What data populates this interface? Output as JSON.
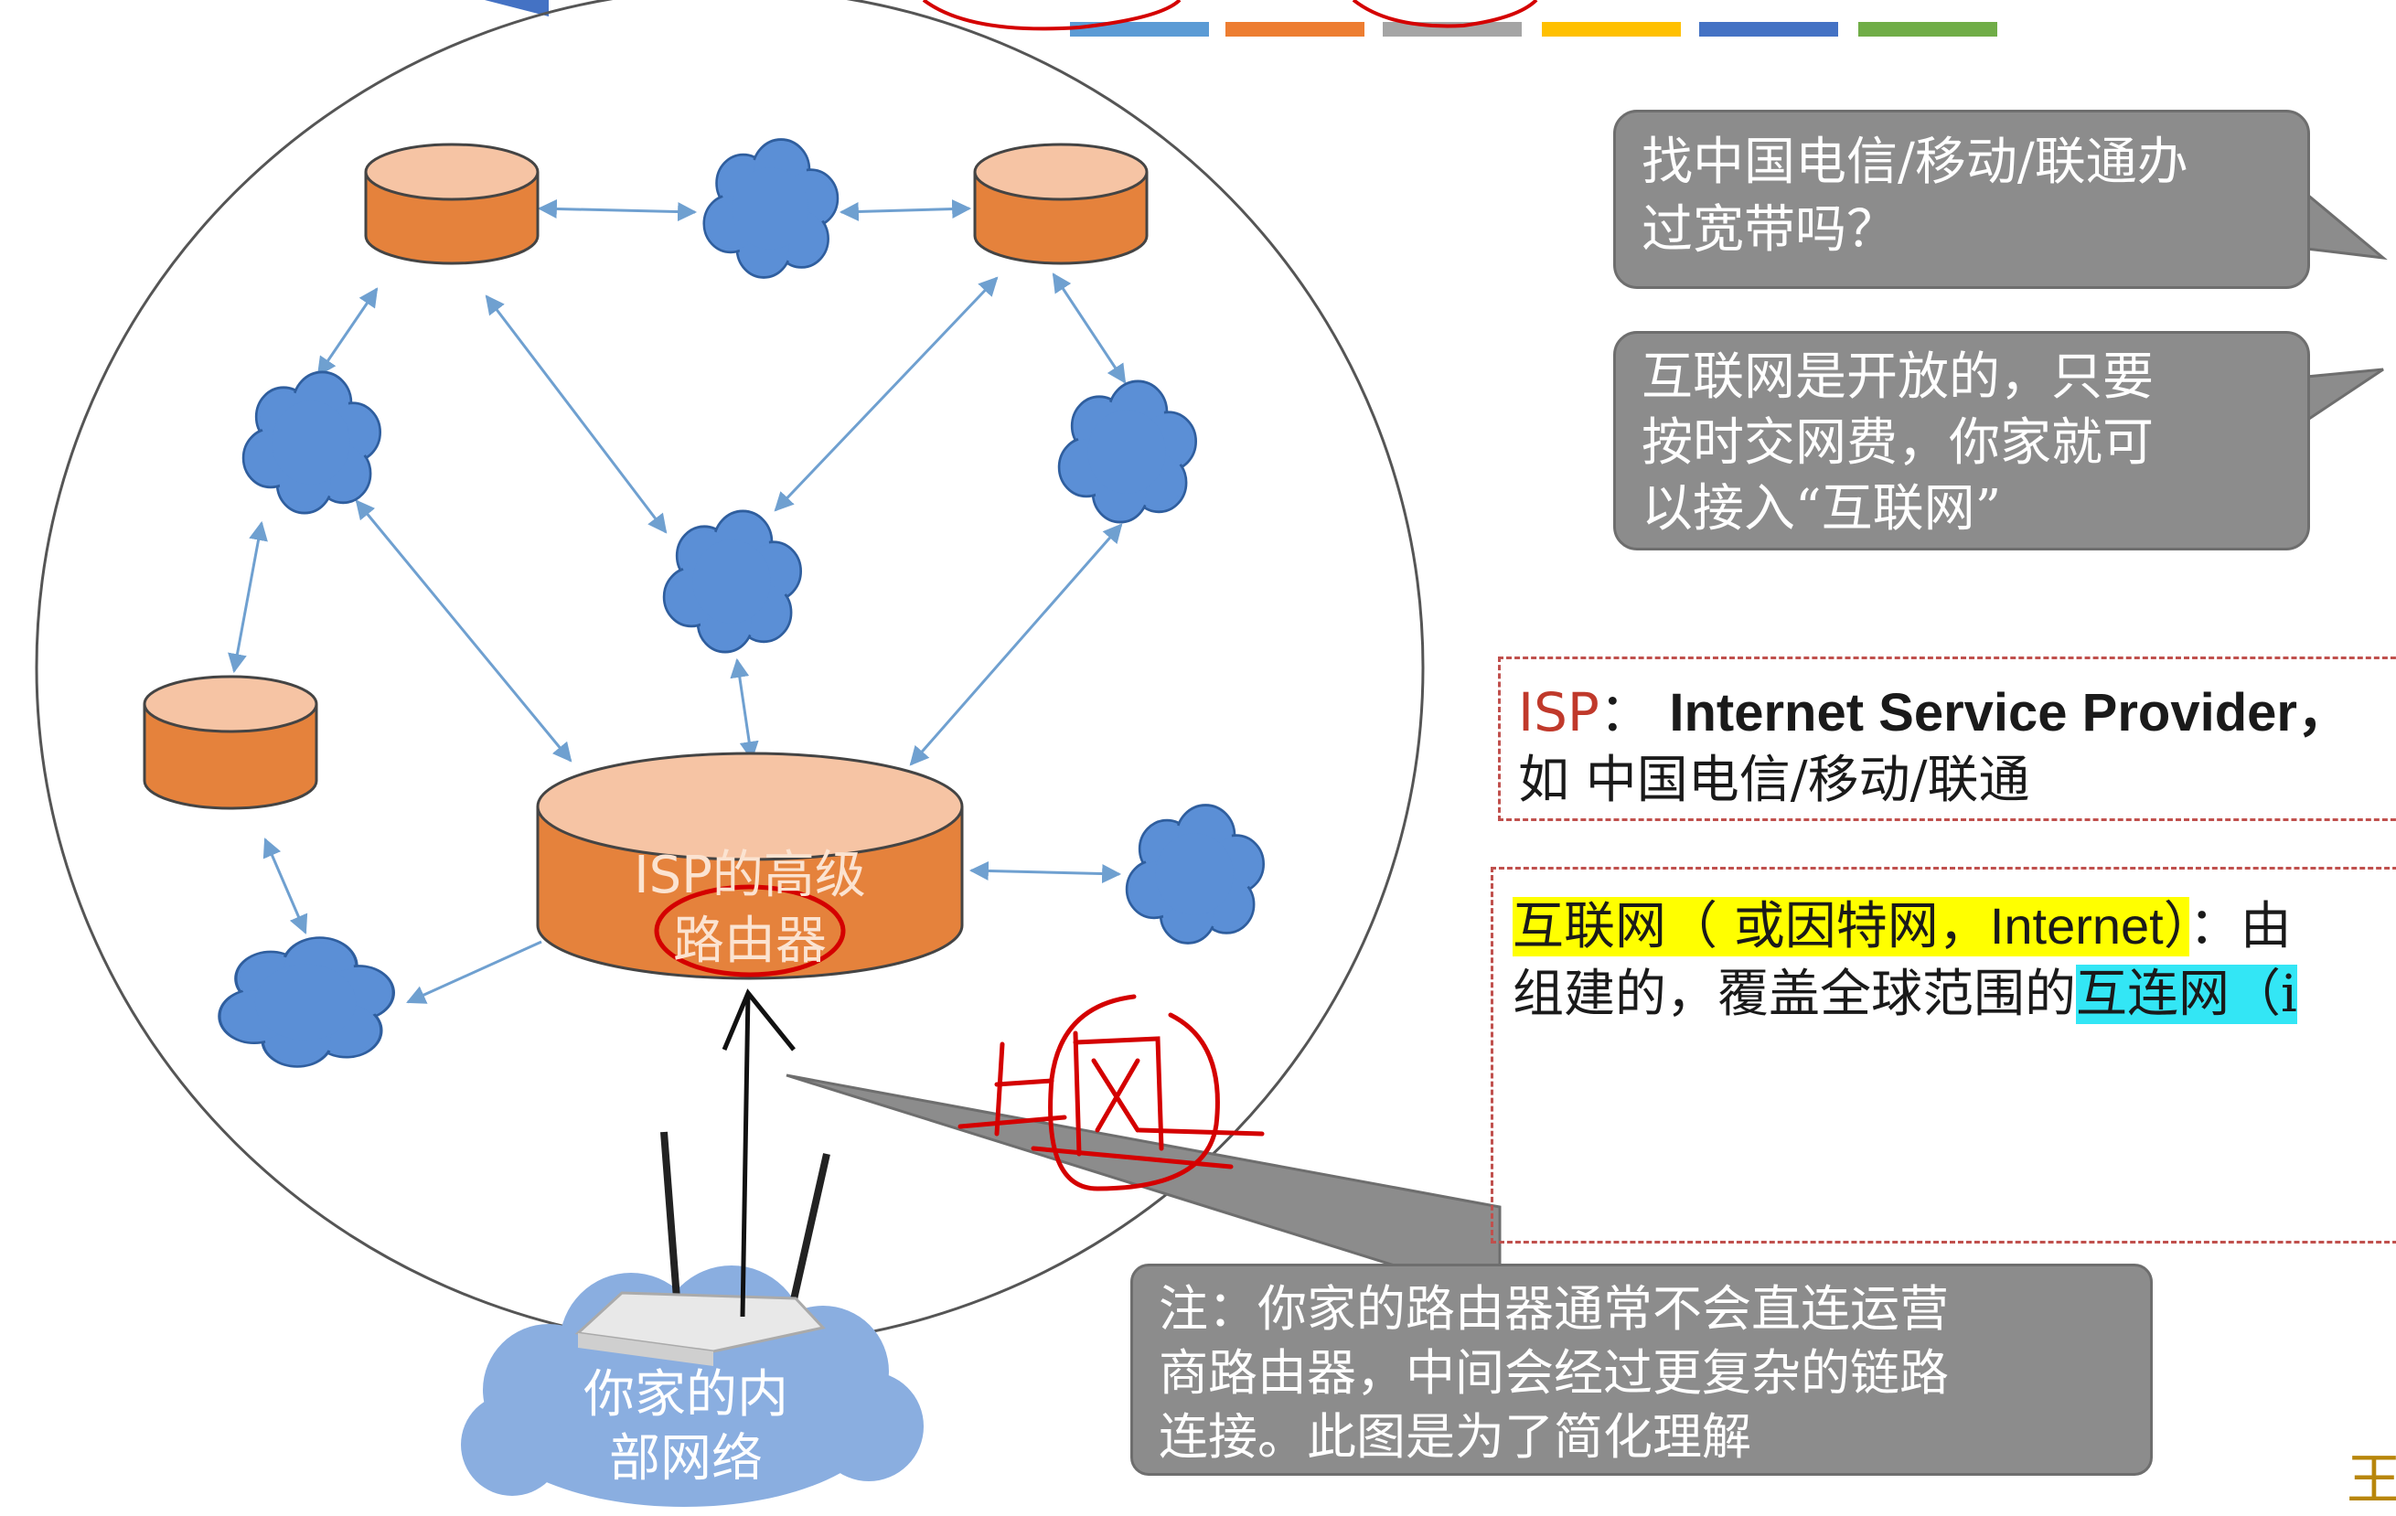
{
  "top_color_bar": [
    "#5b9bd5",
    "#ed7d31",
    "#a5a5a5",
    "#ffc000",
    "#4472c4",
    "#70ad47"
  ],
  "colors": {
    "router_fill": "#e5823c",
    "router_top": "#f6c4a4",
    "cloud_fill": "#5b8fd6",
    "bubble_fill": "#8c8c8c",
    "annotation_red": "#d40000",
    "isp_red": "#c0392b",
    "highlight_yellow": "#ffff00",
    "highlight_cyan": "#33e6f5"
  },
  "bubbles": {
    "q1_line1": "找中国电信/移动/联通办",
    "q1_line2": "过宽带吗？",
    "q2_line1": "互联网是开放的，只要",
    "q2_line2": "按时交网费，你家就可",
    "q2_line3": "以接入“互联网”",
    "note_line1": "注：你家的路由器通常不会直连运营",
    "note_line2": "商路由器，中间会经过更复杂的链路",
    "note_line3": "连接。此图是为了简化理解"
  },
  "isp_definition": {
    "abbr": "ISP",
    "colon": "：",
    "full": "Internet Service Provider，",
    "examples": "如 中国电信/移动/联通"
  },
  "internet_definition": {
    "term": "互联网（ 或因特网，",
    "term_en": "Internet",
    "term_end": "）",
    "colon": "：",
    "cut_char": "由",
    "line2_start": "组建的，覆盖全球范围的",
    "highlight2": "互连网（",
    "cut_end": "i"
  },
  "diagram": {
    "isp_router_line1": "ISP的高级",
    "isp_router_line2": "路由器",
    "home_network_line1": "你家的内",
    "home_network_line2": "部网络",
    "handwriting": "上网"
  },
  "corner_char": "王"
}
